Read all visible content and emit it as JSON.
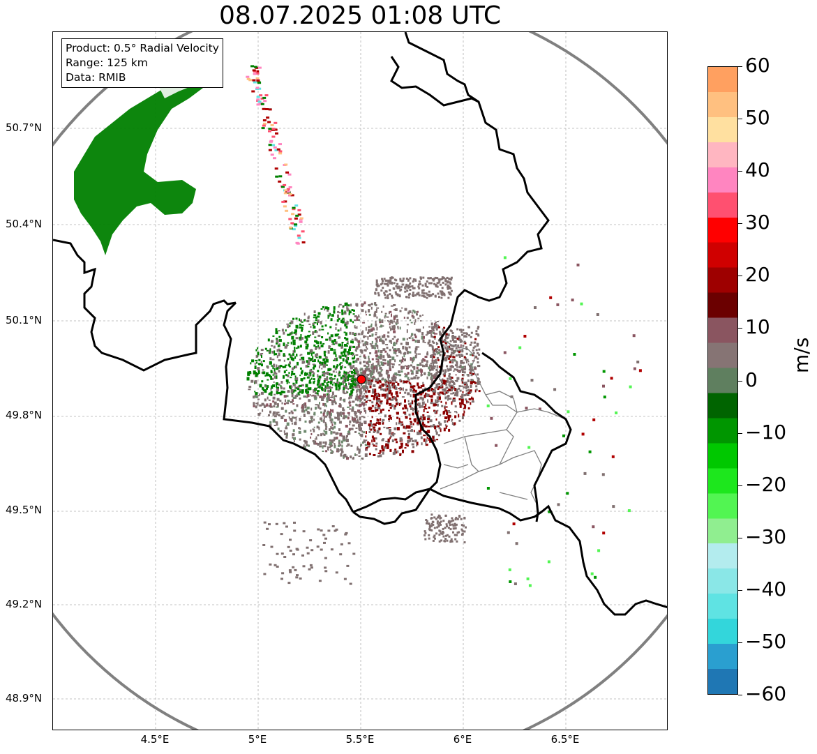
{
  "title": "08.07.2025 01:08 UTC",
  "info": {
    "product": "Product: 0.5° Radial Velocity",
    "range": "Range: 125 km",
    "data": "Data: RMIB"
  },
  "lat_labels": [
    "50.7°N",
    "50.4°N",
    "50.1°N",
    "49.8°N",
    "49.5°N",
    "49.2°N",
    "48.9°N"
  ],
  "lon_labels": [
    "4.5°E",
    "5°E",
    "5.5°E",
    "6°E",
    "6.5°E"
  ],
  "colorbar": {
    "label": "m/s",
    "ticks": [
      "60",
      "50",
      "40",
      "30",
      "20",
      "10",
      "0",
      "−10",
      "−20",
      "−30",
      "−40",
      "−50",
      "−60"
    ],
    "min": -60,
    "max": 60,
    "stops": [
      "#1f77b4",
      "#2a9fd0",
      "#33d6db",
      "#5fe3e3",
      "#8ae7e7",
      "#b3ecee",
      "#90ee90",
      "#52f552",
      "#1de71d",
      "#00c800",
      "#009600",
      "#006400",
      "#5f7f5f",
      "#867474",
      "#8a5560",
      "#6b0000",
      "#9e0000",
      "#d00000",
      "#ff0000",
      "#ff5070",
      "#ff85c0",
      "#ffb6c1",
      "#ffe0a0",
      "#ffc080",
      "#ffa060"
    ]
  },
  "map": {
    "radar_site": {
      "lon": 5.5,
      "lat": 49.92
    },
    "radar_range_km": 125,
    "colors": {
      "border": "#000000",
      "subborder": "#808080",
      "range_ring": "#808080",
      "grid": "#b0b0b0",
      "inbound_green": "#008000",
      "outbound_red": "#8b0000",
      "near_zero": "#807070",
      "site_marker": "#ff0000"
    }
  }
}
